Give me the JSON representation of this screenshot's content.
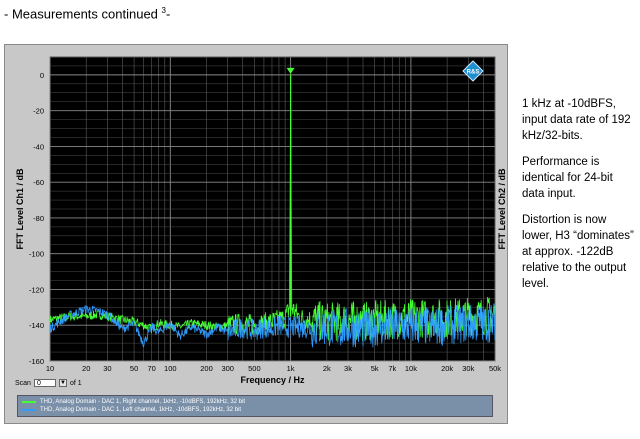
{
  "page": {
    "title": "- Measurements continued",
    "title_sup": "3",
    "title_suffix": "-"
  },
  "side_notes": [
    "1 kHz at -10dBFS, input data rate of 192 kHz/32-bits.",
    "Performance is identical for 24-bit data input.",
    "Distortion is now lower, H3 “dominates” at approx.  -122dB relative to the output level."
  ],
  "scan": {
    "label": "Scan",
    "value": "0",
    "of_label": "of 1"
  },
  "legend": [
    {
      "text": "THD, Analog Domain - DAC 1, Right channel, 1kHz, -10dBFS, 192kHz, 32 bit",
      "color": "#44ff33"
    },
    {
      "text": "THD, Analog Domain - DAC 1, Left channel, 1kHz, -10dBFS, 192kHz, 32 bit",
      "color": "#2f9cff"
    }
  ],
  "logo_text": "R&S",
  "chart_data": {
    "type": "line",
    "xlabel": "Frequency / Hz",
    "ylabel_left": "FFT Level Ch1 / dB",
    "ylabel_right": "FFT Level Ch2 / dB",
    "xscale": "log",
    "xlim": [
      10,
      50000
    ],
    "ylim": [
      -160,
      10
    ],
    "grid": true,
    "background": "#000000",
    "x_ticks": [
      {
        "v": 10,
        "l": "10"
      },
      {
        "v": 20,
        "l": "20"
      },
      {
        "v": 30,
        "l": "30"
      },
      {
        "v": 50,
        "l": "50"
      },
      {
        "v": 70,
        "l": "70"
      },
      {
        "v": 100,
        "l": "100"
      },
      {
        "v": 200,
        "l": "200"
      },
      {
        "v": 300,
        "l": "300"
      },
      {
        "v": 500,
        "l": "500"
      },
      {
        "v": 1000,
        "l": "1k"
      },
      {
        "v": 2000,
        "l": "2k"
      },
      {
        "v": 3000,
        "l": "3k"
      },
      {
        "v": 5000,
        "l": "5k"
      },
      {
        "v": 7000,
        "l": "7k"
      },
      {
        "v": 10000,
        "l": "10k"
      },
      {
        "v": 20000,
        "l": "20k"
      },
      {
        "v": 30000,
        "l": "30k"
      },
      {
        "v": 50000,
        "l": "50k"
      }
    ],
    "y_ticks": [
      0,
      -20,
      -40,
      -60,
      -80,
      -100,
      -120,
      -140,
      -160
    ],
    "series": [
      {
        "name": "THD, Analog Domain - DAC 1, Right channel, 1kHz, -10dBFS, 192kHz, 32 bit",
        "color": "#44ff33",
        "x": [
          10,
          12,
          15,
          18,
          20,
          25,
          30,
          35,
          40,
          50,
          60,
          70,
          80,
          100,
          120,
          150,
          200,
          250,
          300,
          400,
          500,
          600,
          700,
          800,
          900,
          980,
          1000,
          1020,
          1200,
          1500,
          2000,
          2500,
          3000,
          4000,
          5000,
          7000,
          10000,
          15000,
          20000,
          30000,
          40000,
          50000
        ],
        "y": [
          -137,
          -136,
          -135,
          -135,
          -135,
          -134,
          -135,
          -136,
          -137,
          -138,
          -140,
          -142,
          -139,
          -140,
          -141,
          -139,
          -140,
          -141,
          -140,
          -139,
          -140,
          -139,
          -138,
          -137,
          -136,
          -130,
          0,
          -130,
          -136,
          -137,
          -138,
          -138,
          -137,
          -138,
          -137,
          -137,
          -136,
          -136,
          -136,
          -135,
          -135,
          -134
        ]
      },
      {
        "name": "THD, Analog Domain - DAC 1, Left channel, 1kHz, -10dBFS, 192kHz, 32 bit",
        "color": "#2f9cff",
        "x": [
          10,
          12,
          15,
          18,
          20,
          25,
          30,
          35,
          40,
          50,
          60,
          70,
          80,
          100,
          120,
          150,
          200,
          250,
          300,
          400,
          500,
          600,
          700,
          800,
          900,
          1000,
          1200,
          1500,
          2000,
          2500,
          3000,
          4000,
          5000,
          7000,
          10000,
          15000,
          20000,
          30000,
          40000,
          50000
        ],
        "y": [
          -142,
          -138,
          -134,
          -132,
          -131,
          -132,
          -134,
          -138,
          -142,
          -139,
          -150,
          -141,
          -144,
          -139,
          -146,
          -141,
          -145,
          -141,
          -144,
          -141,
          -143,
          -141,
          -142,
          -140,
          -141,
          -141,
          -141,
          -142,
          -141,
          -142,
          -141,
          -142,
          -141,
          -141,
          -140,
          -141,
          -140,
          -139,
          -139,
          -138
        ]
      }
    ],
    "markers": [
      {
        "x": 1000,
        "y": 0,
        "shape": "triangle"
      }
    ]
  }
}
